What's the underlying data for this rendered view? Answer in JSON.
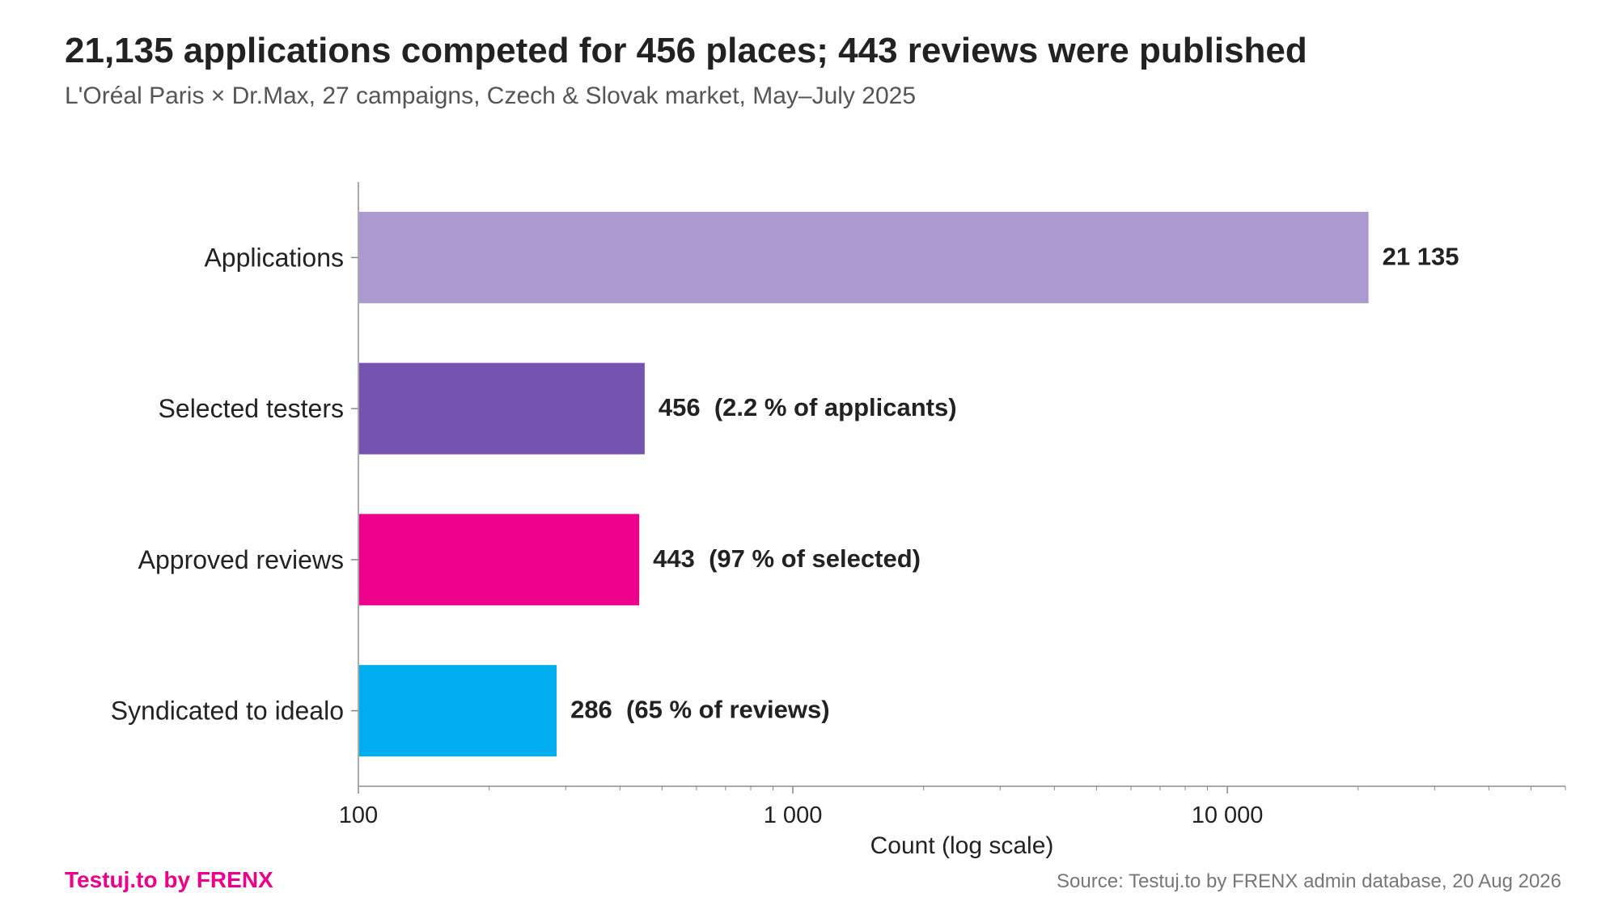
{
  "title": "21,135 applications competed for 456 places; 443 reviews were published",
  "subtitle": "L'Oréal Paris × Dr.Max, 27 campaigns, Czech & Slovak market, May–July 2025",
  "brand": "Testuj.to by FRENX",
  "source": "Source: Testuj.to by FRENX admin database, 20 Aug 2026",
  "chart_data": {
    "type": "bar",
    "orientation": "horizontal",
    "xscale": "log",
    "xlabel": "Count (log scale)",
    "xlim": [
      100,
      60000
    ],
    "xticks": [
      {
        "value": 100,
        "label": "100"
      },
      {
        "value": 1000,
        "label": "1 000"
      },
      {
        "value": 10000,
        "label": "10 000"
      }
    ],
    "grid": false,
    "categories": [
      "Applications",
      "Selected testers",
      "Approved reviews",
      "Syndicated to idealo"
    ],
    "values": [
      21135,
      456,
      443,
      286
    ],
    "labels": [
      "21 135",
      "456  (2.2 % of applicants)",
      "443  (97 % of selected)",
      "286  (65 % of reviews)"
    ],
    "colors": [
      "#AB99CF",
      "#7553B0",
      "#EC008C",
      "#00AEEF"
    ]
  }
}
